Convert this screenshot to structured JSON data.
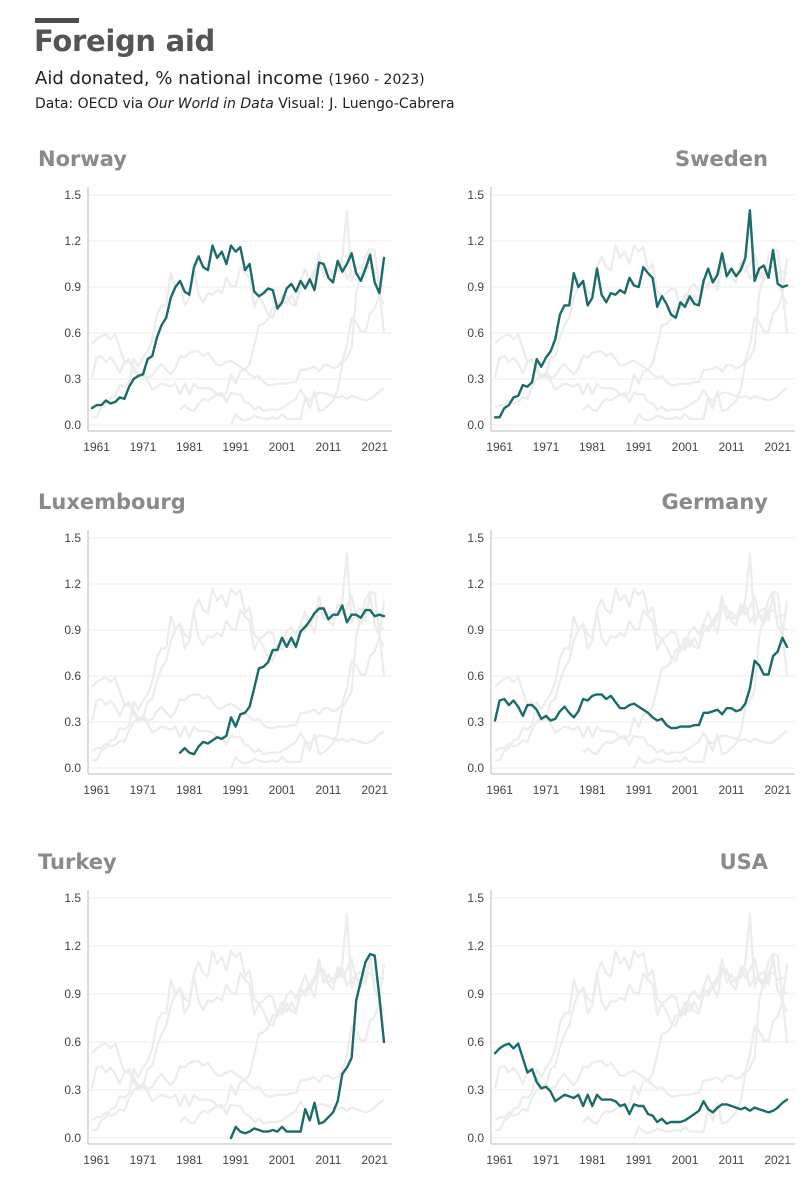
{
  "header": {
    "title": "Foreign aid",
    "subtitle": "Aid donated, % national income",
    "subtitle_range": "(1960 - 2023)",
    "source_prefix": "Data: OECD via ",
    "source_italic": "Our World in Data",
    "source_suffix": "  Visual: J. Luengo-Cabrera"
  },
  "colors": {
    "highlight": "#1a6b6b",
    "background_series": "#ececec",
    "grid": "#eeeeee",
    "label": "#8a8a8a"
  },
  "chart_data": {
    "type": "line",
    "layout": "small-multiples",
    "x_ticks": [
      1961,
      1971,
      1981,
      1991,
      2001,
      2011,
      2021
    ],
    "y_ticks": [
      0.0,
      0.3,
      0.6,
      0.9,
      1.2,
      1.5
    ],
    "ylim": [
      0,
      1.5
    ],
    "xlim": [
      1960,
      2023
    ],
    "panels": [
      {
        "country": "Norway",
        "label_align": "left",
        "x": [
          1960,
          1961,
          1962,
          1963,
          1964,
          1965,
          1966,
          1967,
          1968,
          1969,
          1970,
          1971,
          1972,
          1973,
          1974,
          1975,
          1976,
          1977,
          1978,
          1979,
          1980,
          1981,
          1982,
          1983,
          1984,
          1985,
          1986,
          1987,
          1988,
          1989,
          1990,
          1991,
          1992,
          1993,
          1994,
          1995,
          1996,
          1997,
          1998,
          1999,
          2000,
          2001,
          2002,
          2003,
          2004,
          2005,
          2006,
          2007,
          2008,
          2009,
          2010,
          2011,
          2012,
          2013,
          2014,
          2015,
          2016,
          2017,
          2018,
          2019,
          2020,
          2021,
          2022,
          2023
        ],
        "y": [
          0.11,
          0.13,
          0.13,
          0.16,
          0.14,
          0.15,
          0.18,
          0.17,
          0.25,
          0.3,
          0.32,
          0.33,
          0.43,
          0.45,
          0.57,
          0.65,
          0.7,
          0.83,
          0.9,
          0.94,
          0.87,
          0.85,
          1.03,
          1.1,
          1.03,
          1.01,
          1.17,
          1.09,
          1.13,
          1.05,
          1.17,
          1.13,
          1.16,
          1.01,
          1.05,
          0.87,
          0.84,
          0.86,
          0.89,
          0.88,
          0.76,
          0.8,
          0.89,
          0.92,
          0.87,
          0.94,
          0.89,
          0.95,
          0.88,
          1.06,
          1.05,
          0.96,
          0.93,
          1.07,
          1.0,
          1.05,
          1.12,
          0.99,
          0.94,
          1.02,
          1.11,
          0.93,
          0.86,
          1.09
        ]
      },
      {
        "country": "Sweden",
        "label_align": "right",
        "x": [
          1960,
          1961,
          1962,
          1963,
          1964,
          1965,
          1966,
          1967,
          1968,
          1969,
          1970,
          1971,
          1972,
          1973,
          1974,
          1975,
          1976,
          1977,
          1978,
          1979,
          1980,
          1981,
          1982,
          1983,
          1984,
          1985,
          1986,
          1987,
          1988,
          1989,
          1990,
          1991,
          1992,
          1993,
          1994,
          1995,
          1996,
          1997,
          1998,
          1999,
          2000,
          2001,
          2002,
          2003,
          2004,
          2005,
          2006,
          2007,
          2008,
          2009,
          2010,
          2011,
          2012,
          2013,
          2014,
          2015,
          2016,
          2017,
          2018,
          2019,
          2020,
          2021,
          2022,
          2023
        ],
        "y": [
          0.05,
          0.05,
          0.11,
          0.13,
          0.18,
          0.19,
          0.26,
          0.25,
          0.28,
          0.43,
          0.38,
          0.44,
          0.48,
          0.56,
          0.72,
          0.78,
          0.78,
          0.99,
          0.9,
          0.94,
          0.78,
          0.83,
          1.02,
          0.85,
          0.8,
          0.86,
          0.85,
          0.88,
          0.86,
          0.96,
          0.91,
          0.9,
          1.03,
          0.99,
          0.96,
          0.77,
          0.84,
          0.79,
          0.72,
          0.7,
          0.8,
          0.77,
          0.84,
          0.79,
          0.78,
          0.94,
          1.02,
          0.93,
          0.98,
          1.12,
          0.97,
          1.02,
          0.97,
          1.01,
          1.09,
          1.4,
          0.94,
          1.02,
          1.04,
          0.96,
          1.14,
          0.92,
          0.9,
          0.91
        ]
      },
      {
        "country": "Luxembourg",
        "label_align": "left",
        "x": [
          1979,
          1980,
          1981,
          1982,
          1983,
          1984,
          1985,
          1986,
          1987,
          1988,
          1989,
          1990,
          1991,
          1992,
          1993,
          1994,
          1995,
          1996,
          1997,
          1998,
          1999,
          2000,
          2001,
          2002,
          2003,
          2004,
          2005,
          2006,
          2007,
          2008,
          2009,
          2010,
          2011,
          2012,
          2013,
          2014,
          2015,
          2016,
          2017,
          2018,
          2019,
          2020,
          2021,
          2022,
          2023
        ],
        "y": [
          0.1,
          0.13,
          0.1,
          0.09,
          0.14,
          0.17,
          0.16,
          0.18,
          0.2,
          0.19,
          0.21,
          0.33,
          0.27,
          0.35,
          0.36,
          0.4,
          0.52,
          0.65,
          0.66,
          0.69,
          0.77,
          0.77,
          0.85,
          0.79,
          0.85,
          0.79,
          0.89,
          0.92,
          0.96,
          1.01,
          1.04,
          1.04,
          0.97,
          1.0,
          1.0,
          1.06,
          0.95,
          1.0,
          1.0,
          0.98,
          1.03,
          1.03,
          0.99,
          1.0,
          0.99
        ]
      },
      {
        "country": "Germany",
        "label_align": "right",
        "x": [
          1960,
          1961,
          1962,
          1963,
          1964,
          1965,
          1966,
          1967,
          1968,
          1969,
          1970,
          1971,
          1972,
          1973,
          1974,
          1975,
          1976,
          1977,
          1978,
          1979,
          1980,
          1981,
          1982,
          1983,
          1984,
          1985,
          1986,
          1987,
          1988,
          1989,
          1990,
          1991,
          1992,
          1993,
          1994,
          1995,
          1996,
          1997,
          1998,
          1999,
          2000,
          2001,
          2002,
          2003,
          2004,
          2005,
          2006,
          2007,
          2008,
          2009,
          2010,
          2011,
          2012,
          2013,
          2014,
          2015,
          2016,
          2017,
          2018,
          2019,
          2020,
          2021,
          2022,
          2023
        ],
        "y": [
          0.31,
          0.44,
          0.45,
          0.41,
          0.44,
          0.4,
          0.34,
          0.41,
          0.41,
          0.38,
          0.32,
          0.34,
          0.31,
          0.32,
          0.37,
          0.4,
          0.36,
          0.33,
          0.37,
          0.45,
          0.44,
          0.47,
          0.48,
          0.48,
          0.45,
          0.47,
          0.43,
          0.39,
          0.39,
          0.41,
          0.42,
          0.4,
          0.38,
          0.36,
          0.33,
          0.31,
          0.32,
          0.28,
          0.26,
          0.26,
          0.27,
          0.27,
          0.27,
          0.28,
          0.28,
          0.36,
          0.36,
          0.37,
          0.38,
          0.35,
          0.39,
          0.39,
          0.37,
          0.38,
          0.42,
          0.52,
          0.7,
          0.67,
          0.61,
          0.61,
          0.73,
          0.76,
          0.85,
          0.79
        ]
      },
      {
        "country": "Turkey",
        "label_align": "left",
        "x": [
          1990,
          1991,
          1992,
          1993,
          1994,
          1995,
          1996,
          1997,
          1998,
          1999,
          2000,
          2001,
          2002,
          2003,
          2004,
          2005,
          2006,
          2007,
          2008,
          2009,
          2010,
          2011,
          2012,
          2013,
          2014,
          2015,
          2016,
          2017,
          2018,
          2019,
          2020,
          2021,
          2022,
          2023
        ],
        "y": [
          0.0,
          0.07,
          0.04,
          0.03,
          0.04,
          0.06,
          0.05,
          0.04,
          0.04,
          0.05,
          0.04,
          0.07,
          0.04,
          0.04,
          0.04,
          0.04,
          0.18,
          0.11,
          0.22,
          0.09,
          0.1,
          0.13,
          0.16,
          0.23,
          0.4,
          0.44,
          0.5,
          0.86,
          0.98,
          1.1,
          1.15,
          1.14,
          0.88,
          0.6
        ]
      },
      {
        "country": "USA",
        "label_align": "right",
        "x": [
          1960,
          1961,
          1962,
          1963,
          1964,
          1965,
          1966,
          1967,
          1968,
          1969,
          1970,
          1971,
          1972,
          1973,
          1974,
          1975,
          1976,
          1977,
          1978,
          1979,
          1980,
          1981,
          1982,
          1983,
          1984,
          1985,
          1986,
          1987,
          1988,
          1989,
          1990,
          1991,
          1992,
          1993,
          1994,
          1995,
          1996,
          1997,
          1998,
          1999,
          2000,
          2001,
          2002,
          2003,
          2004,
          2005,
          2006,
          2007,
          2008,
          2009,
          2010,
          2011,
          2012,
          2013,
          2014,
          2015,
          2016,
          2017,
          2018,
          2019,
          2020,
          2021,
          2022,
          2023
        ],
        "y": [
          0.53,
          0.56,
          0.58,
          0.59,
          0.56,
          0.59,
          0.5,
          0.41,
          0.43,
          0.35,
          0.31,
          0.32,
          0.29,
          0.23,
          0.25,
          0.27,
          0.26,
          0.25,
          0.27,
          0.2,
          0.27,
          0.2,
          0.27,
          0.24,
          0.24,
          0.24,
          0.23,
          0.2,
          0.21,
          0.15,
          0.21,
          0.2,
          0.2,
          0.15,
          0.14,
          0.1,
          0.12,
          0.09,
          0.1,
          0.1,
          0.1,
          0.11,
          0.13,
          0.15,
          0.17,
          0.23,
          0.18,
          0.16,
          0.19,
          0.21,
          0.21,
          0.2,
          0.19,
          0.18,
          0.19,
          0.17,
          0.19,
          0.18,
          0.17,
          0.16,
          0.17,
          0.19,
          0.22,
          0.24
        ]
      }
    ]
  }
}
